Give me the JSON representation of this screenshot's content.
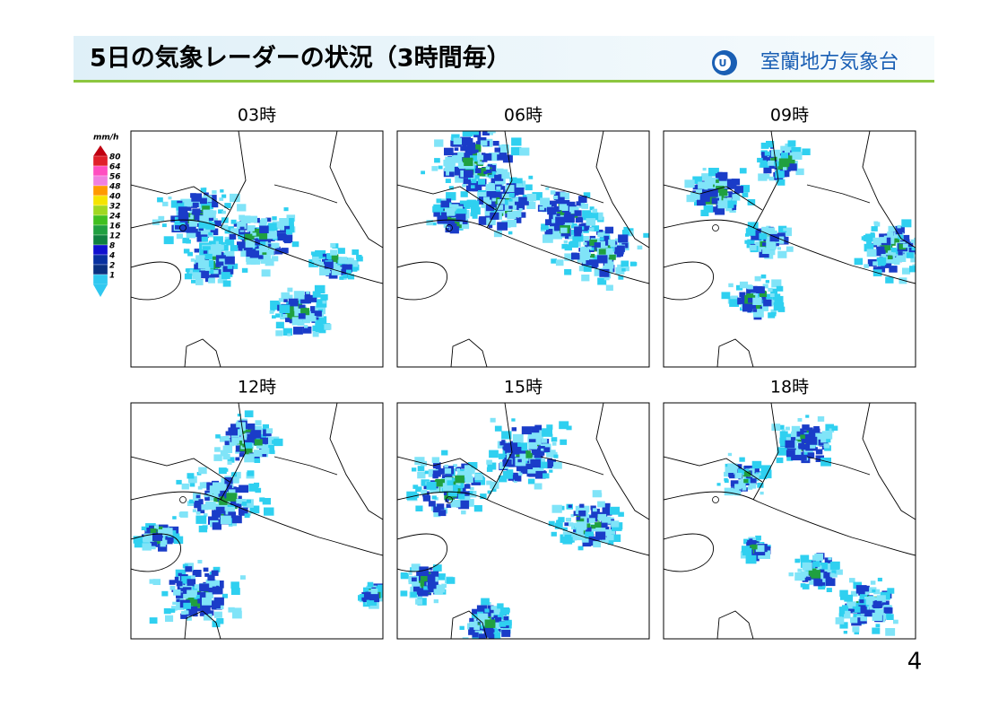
{
  "header": {
    "title": "5日の気象レーダーの状況（3時間毎）",
    "organization": "室蘭地方気象台"
  },
  "legend": {
    "unit": "mm/h",
    "levels": [
      80,
      64,
      56,
      48,
      40,
      32,
      24,
      16,
      12,
      8,
      4,
      2,
      1
    ]
  },
  "panels": [
    {
      "label": "03時"
    },
    {
      "label": "06時"
    },
    {
      "label": "09時"
    },
    {
      "label": "12時"
    },
    {
      "label": "15時"
    },
    {
      "label": "18時"
    }
  ],
  "page_number": 4
}
